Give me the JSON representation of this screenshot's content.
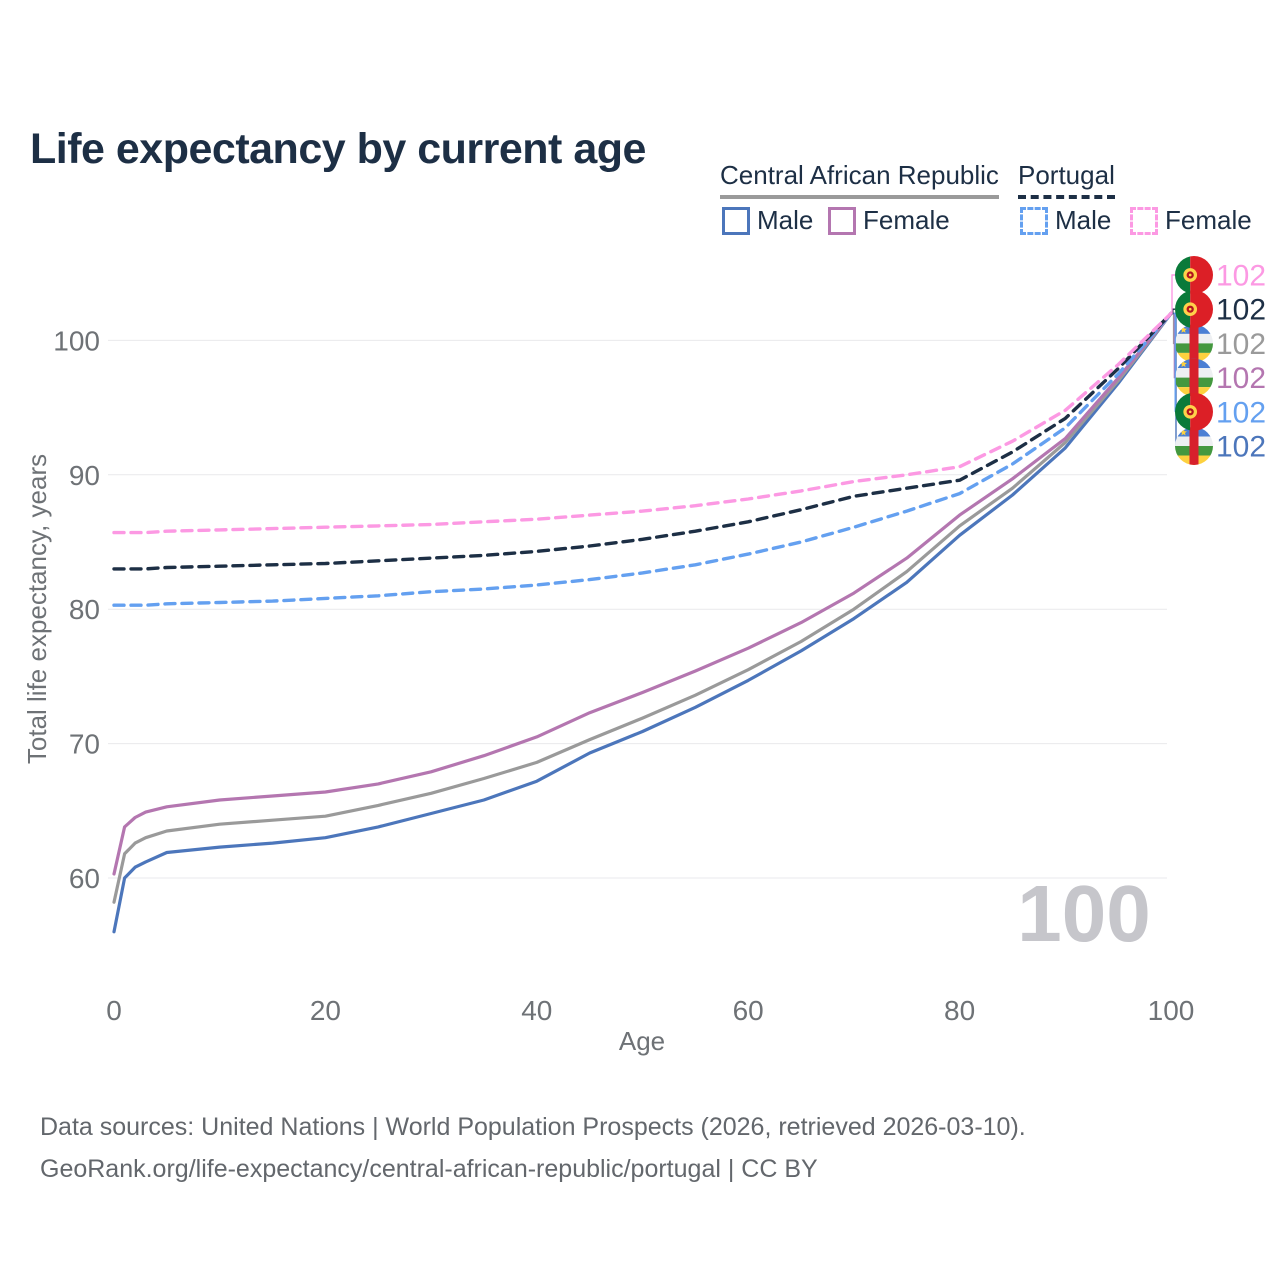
{
  "title": "Life expectancy by current age",
  "legend": {
    "groups": [
      {
        "label": "Central African Republic",
        "line_style": "solid",
        "underline_color": "#9a9a9a",
        "items": [
          {
            "label": "Male",
            "color": "#4c76bb",
            "dashed": false
          },
          {
            "label": "Female",
            "color": "#b476b0",
            "dashed": false
          }
        ]
      },
      {
        "label": "Portugal",
        "line_style": "dashed",
        "underline_color": "#1d2f45",
        "items": [
          {
            "label": "Male",
            "color": "#64a0f0",
            "dashed": true
          },
          {
            "label": "Female",
            "color": "#fc99e3",
            "dashed": true
          }
        ]
      }
    ]
  },
  "chart_data": {
    "type": "line",
    "title": "Life expectancy by current age",
    "xlabel": "Age",
    "ylabel": "Total life expectancy, years",
    "xticks": [
      0,
      20,
      40,
      60,
      80,
      100
    ],
    "yticks": [
      60,
      70,
      80,
      90,
      100
    ],
    "xlim": [
      0,
      100
    ],
    "ylim": [
      55,
      104
    ],
    "grid": "horizontal-only",
    "hover_age_watermark": "100",
    "x": [
      0,
      1,
      2,
      3,
      5,
      10,
      15,
      20,
      25,
      30,
      35,
      40,
      45,
      50,
      55,
      60,
      65,
      70,
      75,
      80,
      85,
      90,
      95,
      100
    ],
    "series": [
      {
        "id": "car-male",
        "name": "Central African Republic Male",
        "country": "central-african-republic",
        "color": "#4c76bb",
        "dashed": false,
        "label_slot": 5,
        "end_value": "102",
        "values": [
          56.0,
          60.0,
          60.8,
          61.2,
          61.9,
          62.3,
          62.6,
          63.0,
          63.8,
          64.8,
          65.8,
          67.2,
          69.3,
          70.9,
          72.7,
          74.7,
          76.9,
          79.3,
          82.0,
          85.5,
          88.5,
          92.0,
          96.8,
          102
        ]
      },
      {
        "id": "car-total",
        "name": "Central African Republic",
        "country": "central-african-republic",
        "color": "#9a9a9a",
        "dashed": false,
        "label_slot": 2,
        "end_value": "102",
        "values": [
          58.2,
          61.8,
          62.6,
          63.0,
          63.5,
          64.0,
          64.3,
          64.6,
          65.4,
          66.3,
          67.4,
          68.6,
          70.3,
          71.9,
          73.6,
          75.5,
          77.6,
          80.0,
          82.8,
          86.2,
          89.0,
          92.4,
          97.0,
          102
        ]
      },
      {
        "id": "car-female",
        "name": "Central African Republic Female",
        "country": "central-african-republic",
        "color": "#b476b0",
        "dashed": false,
        "label_slot": 3,
        "end_value": "102",
        "values": [
          60.3,
          63.8,
          64.5,
          64.9,
          65.3,
          65.8,
          66.1,
          66.4,
          67.0,
          67.9,
          69.1,
          70.5,
          72.3,
          73.8,
          75.4,
          77.1,
          79.0,
          81.2,
          83.8,
          87.0,
          89.7,
          92.7,
          97.2,
          102
        ]
      },
      {
        "id": "pt-male",
        "name": "Portugal Male",
        "country": "portugal",
        "color": "#64a0f0",
        "dashed": true,
        "label_slot": 4,
        "end_value": "102",
        "values": [
          80.3,
          80.3,
          80.3,
          80.3,
          80.4,
          80.5,
          80.6,
          80.8,
          81.0,
          81.3,
          81.5,
          81.8,
          82.2,
          82.7,
          83.3,
          84.1,
          85.0,
          86.1,
          87.3,
          88.6,
          90.8,
          93.5,
          97.5,
          102
        ]
      },
      {
        "id": "pt-total",
        "name": "Portugal",
        "country": "portugal",
        "color": "#1d2f45",
        "dashed": true,
        "label_slot": 1,
        "end_value": "102",
        "values": [
          83.0,
          83.0,
          83.0,
          83.0,
          83.1,
          83.2,
          83.3,
          83.4,
          83.6,
          83.8,
          84.0,
          84.3,
          84.7,
          85.2,
          85.8,
          86.5,
          87.4,
          88.4,
          89.0,
          89.6,
          91.7,
          94.2,
          97.9,
          102
        ]
      },
      {
        "id": "pt-female",
        "name": "Portugal Female",
        "country": "portugal",
        "color": "#fc99e3",
        "dashed": true,
        "label_slot": 0,
        "end_value": "102",
        "values": [
          85.7,
          85.7,
          85.7,
          85.7,
          85.8,
          85.9,
          86.0,
          86.1,
          86.2,
          86.3,
          86.5,
          86.7,
          87.0,
          87.3,
          87.7,
          88.2,
          88.8,
          89.5,
          90.0,
          90.6,
          92.5,
          94.8,
          98.2,
          102
        ]
      }
    ]
  },
  "footer": {
    "line1": "Data sources: United Nations | World Population Prospects (2026, retrieved 2026-03-10).",
    "line2": "GeoRank.org/life-expectancy/central-african-republic/portugal | CC BY"
  }
}
